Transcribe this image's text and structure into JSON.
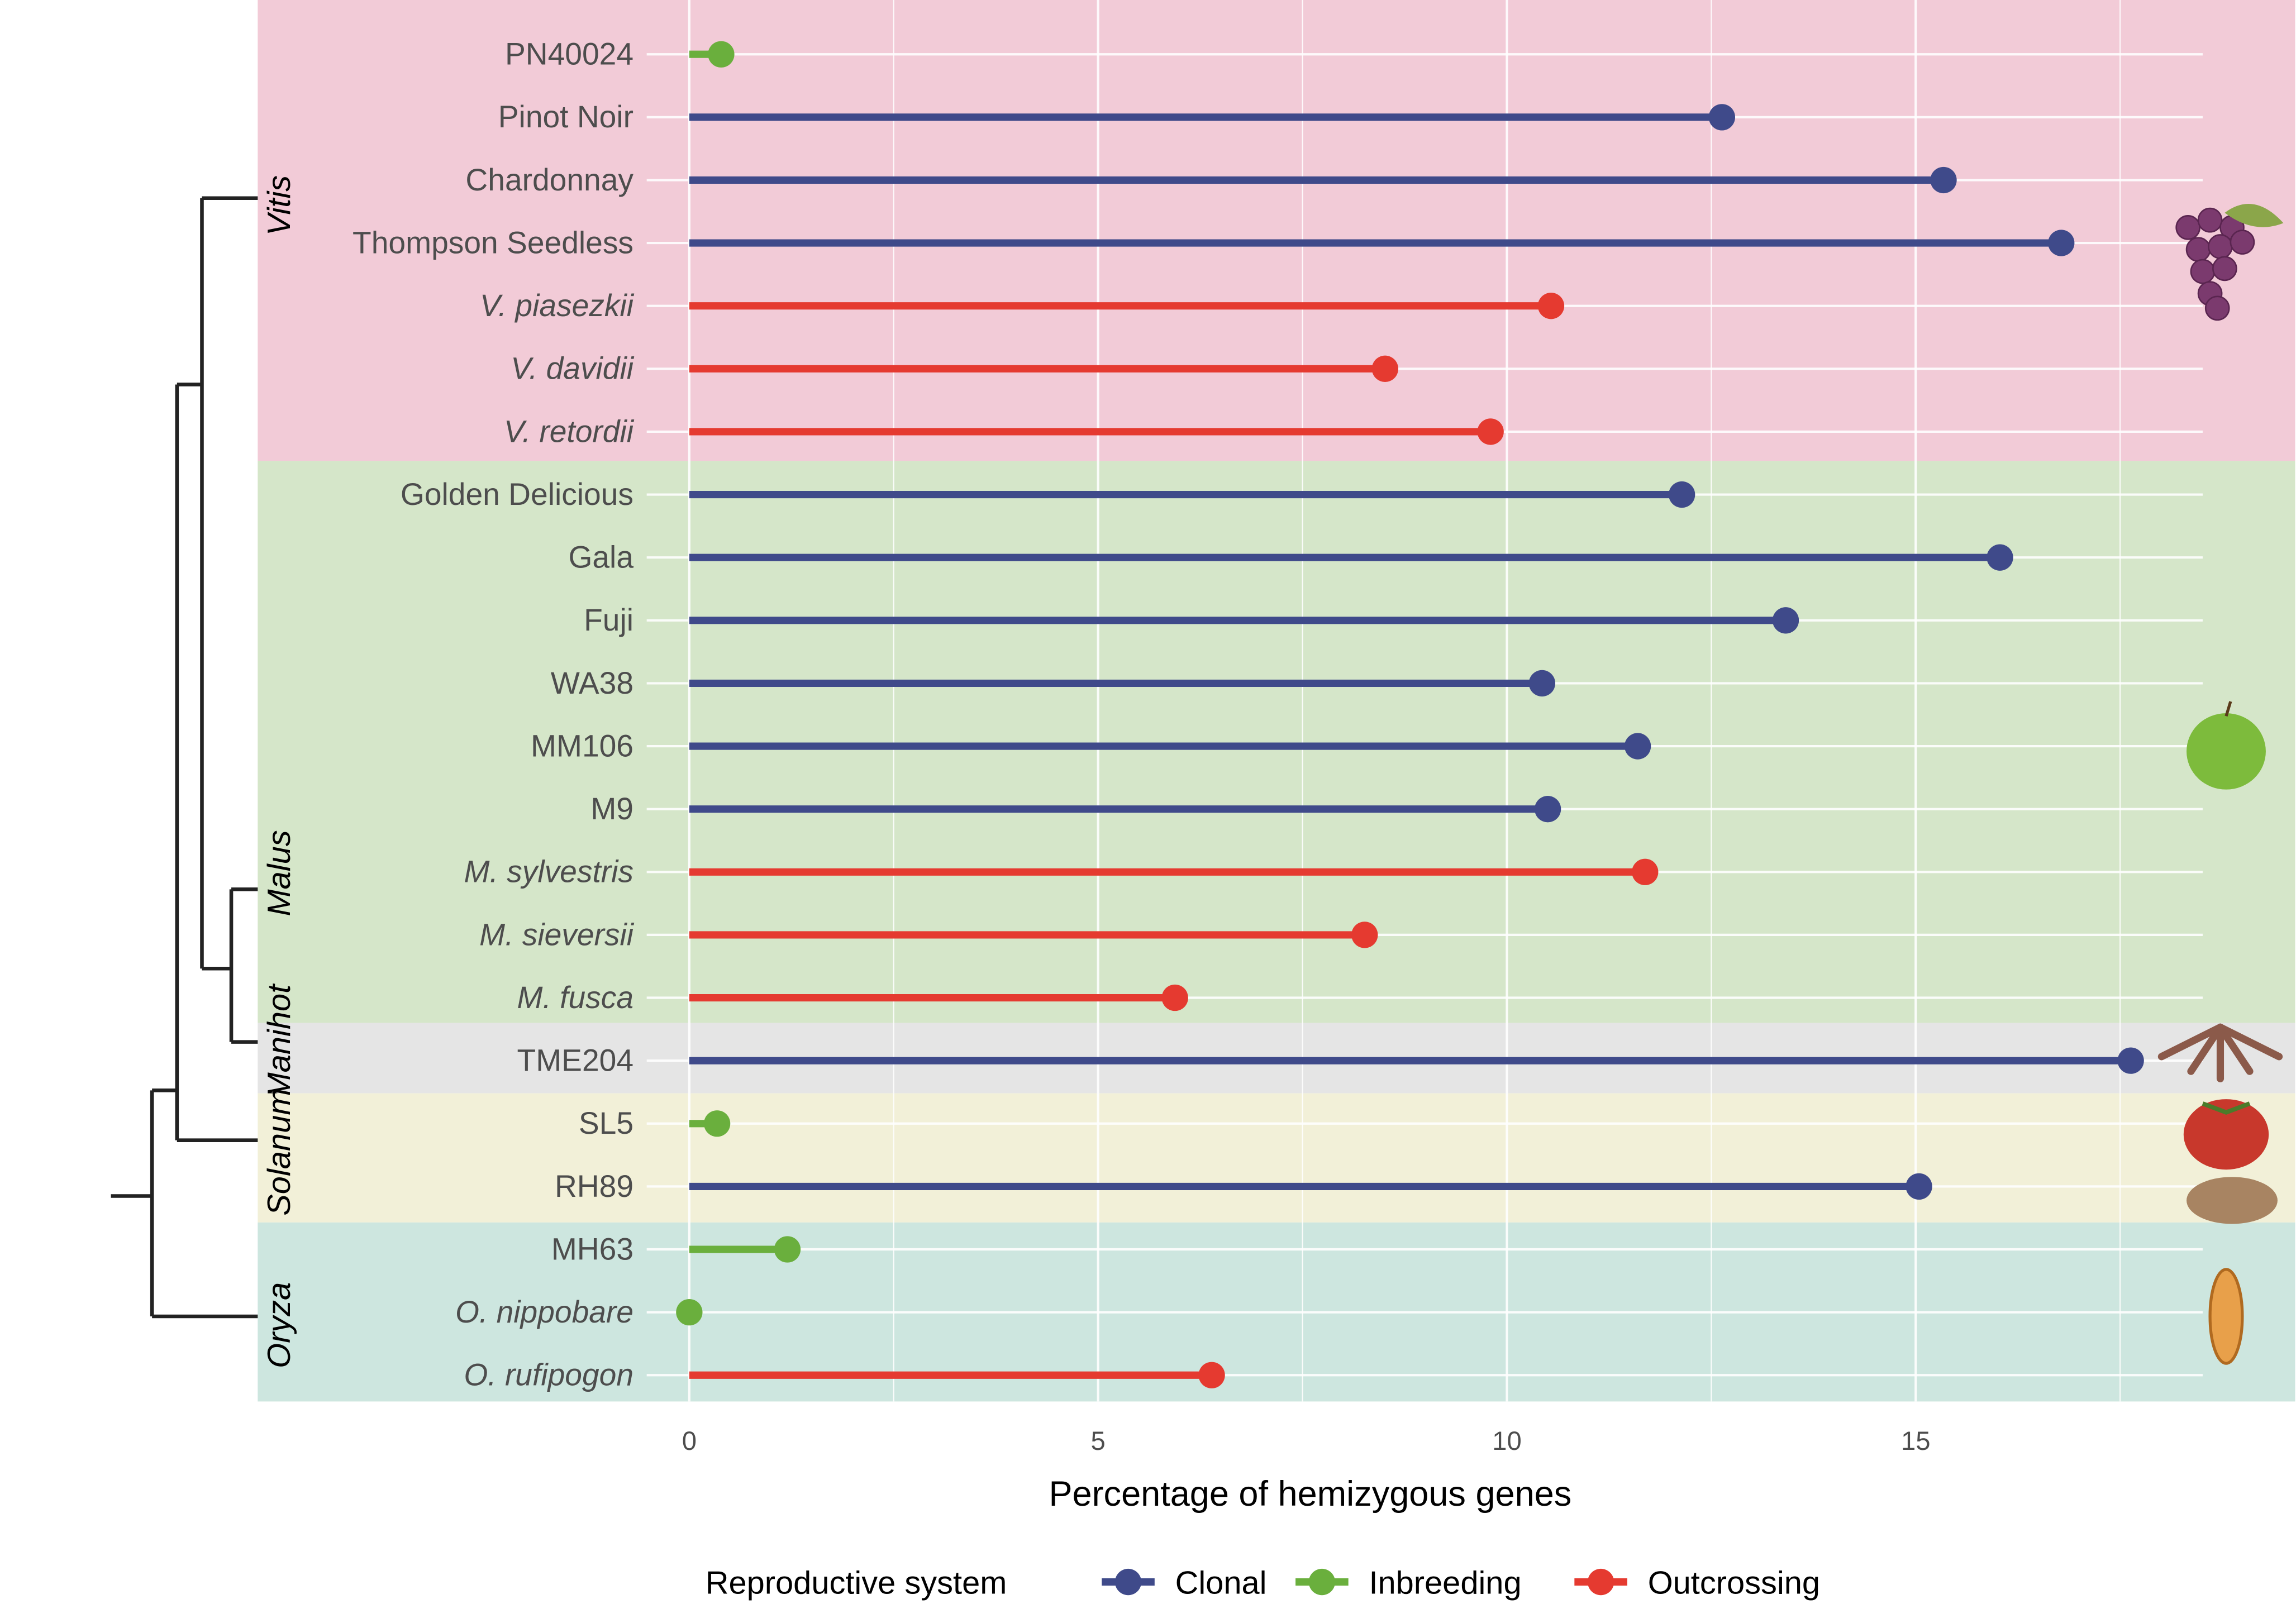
{
  "chart_data": {
    "type": "lollipop",
    "xlabel": "Percentage of hemizygous genes",
    "xlim": [
      0,
      19.5
    ],
    "xticks": [
      0,
      5,
      10,
      15
    ],
    "grid": true,
    "legend": {
      "title": "Reproductive system",
      "placement": "bottom",
      "entries": [
        "Clonal",
        "Inbreeding",
        "Outcrossing"
      ]
    },
    "colors": {
      "Clonal": "#3F4A8A",
      "Inbreeding": "#6AAF3D",
      "Outcrossing": "#E53A30"
    },
    "groups": [
      {
        "genus": "Vitis",
        "bg": "#F2CBD7",
        "icon": "grape-icon",
        "rows": 7
      },
      {
        "genus": "Malus",
        "bg": "#D5E6C9",
        "icon": "apple-icon",
        "rows": 9
      },
      {
        "genus": "Manihot",
        "bg": "#E5E5E5",
        "icon": "cassava-icon",
        "rows": 1
      },
      {
        "genus": "Solanum",
        "bg": "#F2F0D8",
        "icon": "tomato-potato-icon",
        "rows": 2
      },
      {
        "genus": "Oryza",
        "bg": "#CDE6DF",
        "icon": "rice-grain-icon",
        "rows": 3
      }
    ],
    "data": [
      {
        "name": "PN40024",
        "value": 0.39,
        "system": "Inbreeding",
        "italic": false
      },
      {
        "name": "Pinot Noir",
        "value": 12.63,
        "system": "Clonal",
        "italic": false
      },
      {
        "name": "Chardonnay",
        "value": 15.34,
        "system": "Clonal",
        "italic": false
      },
      {
        "name": "Thompson Seedless",
        "value": 16.78,
        "system": "Clonal",
        "italic": false
      },
      {
        "name": "V. piasezkii",
        "value": 10.54,
        "system": "Outcrossing",
        "italic": true
      },
      {
        "name": "V. davidii",
        "value": 8.51,
        "system": "Outcrossing",
        "italic": true
      },
      {
        "name": "V. retordii",
        "value": 9.8,
        "system": "Outcrossing",
        "italic": true
      },
      {
        "name": "Golden Delicious",
        "value": 12.14,
        "system": "Clonal",
        "italic": false
      },
      {
        "name": "Gala",
        "value": 16.03,
        "system": "Clonal",
        "italic": false
      },
      {
        "name": "Fuji",
        "value": 13.41,
        "system": "Clonal",
        "italic": false
      },
      {
        "name": "WA38",
        "value": 10.43,
        "system": "Clonal",
        "italic": false
      },
      {
        "name": "MM106",
        "value": 11.6,
        "system": "Clonal",
        "italic": false
      },
      {
        "name": "M9",
        "value": 10.5,
        "system": "Clonal",
        "italic": false
      },
      {
        "name": "M. sylvestris",
        "value": 11.69,
        "system": "Outcrossing",
        "italic": true
      },
      {
        "name": "M. sieversii",
        "value": 8.26,
        "system": "Outcrossing",
        "italic": true
      },
      {
        "name": "M. fusca",
        "value": 5.94,
        "system": "Outcrossing",
        "italic": true
      },
      {
        "name": "TME204",
        "value": 17.63,
        "system": "Clonal",
        "italic": false
      },
      {
        "name": "SL5",
        "value": 0.34,
        "system": "Inbreeding",
        "italic": false
      },
      {
        "name": "RH89",
        "value": 15.04,
        "system": "Clonal",
        "italic": false
      },
      {
        "name": "MH63",
        "value": 1.2,
        "system": "Inbreeding",
        "italic": false
      },
      {
        "name": "O. nippobare",
        "value": 0,
        "system": "Inbreeding",
        "italic": true
      },
      {
        "name": "O. rufipogon",
        "value": 6.39,
        "system": "Outcrossing",
        "italic": true
      }
    ]
  }
}
